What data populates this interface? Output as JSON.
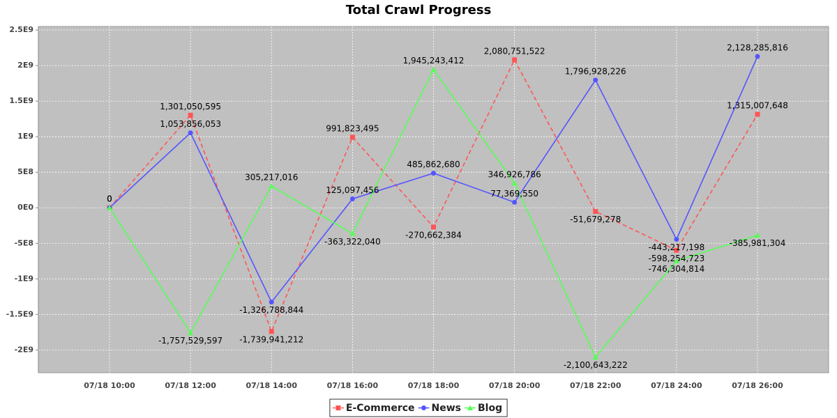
{
  "chart_data": {
    "type": "line",
    "title": "Total Crawl Progress",
    "categories": [
      "07/18 10:00",
      "07/18 12:00",
      "07/18 14:00",
      "07/18 16:00",
      "07/18 18:00",
      "07/18 20:00",
      "07/18 22:00",
      "07/18 24:00",
      "07/18 26:00"
    ],
    "series": [
      {
        "name": "E-Commerce",
        "color": "#ff5555",
        "marker": "square",
        "line_style": "dashed",
        "values": [
          0,
          1301050595,
          -1739941212,
          991823495,
          -270662384,
          2080751522,
          -51679278,
          -598254723,
          1315007648
        ],
        "value_labels": [
          "0",
          "1,301,050,595",
          "-1,739,941,212",
          "991,823,495",
          "-270,662,384",
          "2,080,751,522",
          "-51,679,278",
          "-598,254,723",
          "1,315,007,648"
        ]
      },
      {
        "name": "News",
        "color": "#5555ff",
        "marker": "circle",
        "line_style": "solid",
        "values": [
          0,
          1053856053,
          -1326788844,
          125097456,
          485862680,
          77369550,
          1796928226,
          -443217198,
          2128285816
        ],
        "value_labels": [
          "0",
          "1,053,856,053",
          "-1,326,788,844",
          "125,097,456",
          "485,862,680",
          "77,369,550",
          "1,796,928,226",
          "-443,217,198",
          "2,128,285,816"
        ]
      },
      {
        "name": "Blog",
        "color": "#55ff55",
        "marker": "triangle",
        "line_style": "solid",
        "values": [
          0,
          -1757529597,
          305217016,
          -363322040,
          1945243412,
          346926786,
          -2100643222,
          -746304814,
          -385981304
        ],
        "value_labels": [
          "0",
          "-1,757,529,597",
          "305,217,016",
          "-363,322,040",
          "1,945,243,412",
          "346,926,786",
          "-2,100,643,222",
          "-746,304,814",
          "-385,981,304"
        ]
      }
    ],
    "ylim": [
      -2320000000,
      2550000000
    ],
    "yticks": [
      {
        "value": -2000000000,
        "label": "-2E9"
      },
      {
        "value": -1500000000,
        "label": "-1.5E9"
      },
      {
        "value": -1000000000,
        "label": "-1E9"
      },
      {
        "value": -500000000,
        "label": "-5E8"
      },
      {
        "value": 0,
        "label": "0E0"
      },
      {
        "value": 500000000,
        "label": "5E8"
      },
      {
        "value": 1000000000,
        "label": "1E9"
      },
      {
        "value": 1500000000,
        "label": "1.5E9"
      },
      {
        "value": 2000000000,
        "label": "2E9"
      },
      {
        "value": 2500000000,
        "label": "2.5E9"
      }
    ],
    "grid": true,
    "legend": "bottom"
  }
}
